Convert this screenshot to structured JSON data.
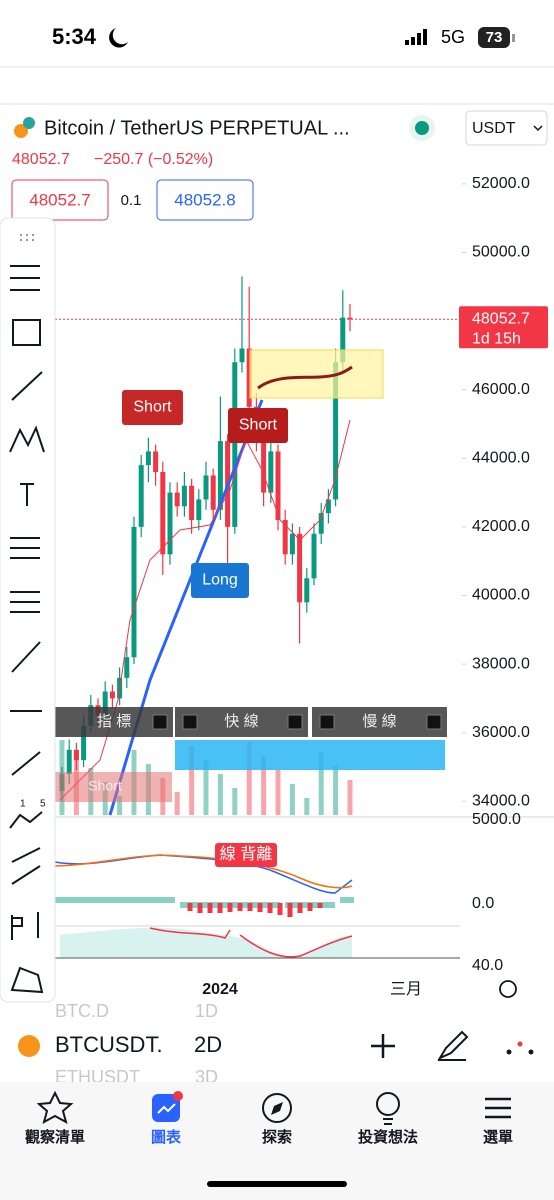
{
  "status": {
    "time": "5:34",
    "network": "5G",
    "battery": "73"
  },
  "header": {
    "symbol": "Bitcoin / TetherUS PERPETUAL ...",
    "currency": "USDT",
    "last": "48052.7",
    "change": "−250.7 (−0.52%)",
    "sell": "48052.7",
    "spread": "0.1",
    "buy": "48052.8"
  },
  "chart": {
    "ylim": [
      33600,
      54300
    ],
    "price_ticks": [
      {
        "value": 52000,
        "label": "52000.0"
      },
      {
        "value": 50000,
        "label": "50000.0"
      },
      {
        "value": 46000,
        "label": "46000.0"
      },
      {
        "value": 44000,
        "label": "44000.0"
      },
      {
        "value": 42000,
        "label": "42000.0"
      },
      {
        "value": 40000,
        "label": "40000.0"
      },
      {
        "value": 38000,
        "label": "38000.0"
      },
      {
        "value": 36000,
        "label": "36000.0"
      },
      {
        "value": 34000,
        "label": "34000.0"
      }
    ],
    "current_price": {
      "value": 48052.7,
      "label": "48052.7",
      "countdown": "1d 15h"
    },
    "up_color": "#089981",
    "down_color": "#f23645",
    "candles": [
      [
        34300,
        35000,
        34000,
        34800
      ],
      [
        34800,
        35800,
        34500,
        35500
      ],
      [
        35500,
        35700,
        34900,
        35200
      ],
      [
        35200,
        36500,
        35000,
        36200
      ],
      [
        36200,
        37100,
        36000,
        36800
      ],
      [
        36800,
        37000,
        36200,
        36500
      ],
      [
        36500,
        37500,
        36300,
        37200
      ],
      [
        37200,
        37400,
        36700,
        37000
      ],
      [
        37000,
        37900,
        36800,
        37600
      ],
      [
        37600,
        38500,
        37300,
        38200
      ],
      [
        38200,
        42300,
        38000,
        42000
      ],
      [
        42000,
        44100,
        41700,
        43800
      ],
      [
        43800,
        44600,
        43300,
        44200
      ],
      [
        44200,
        44400,
        43200,
        43600
      ],
      [
        43600,
        43900,
        40600,
        41200
      ],
      [
        41200,
        43300,
        40900,
        43000
      ],
      [
        43000,
        43300,
        42300,
        42600
      ],
      [
        42600,
        43600,
        42300,
        43200
      ],
      [
        43200,
        43400,
        41800,
        42200
      ],
      [
        42200,
        43100,
        41900,
        42800
      ],
      [
        42800,
        43900,
        42500,
        43500
      ],
      [
        43500,
        43700,
        42100,
        42500
      ],
      [
        42500,
        45800,
        42200,
        44500
      ],
      [
        44500,
        44700,
        40000,
        42000
      ],
      [
        42000,
        47200,
        41800,
        46800
      ],
      [
        46800,
        49300,
        46500,
        47200
      ],
      [
        47200,
        49000,
        45100,
        45500
      ],
      [
        45500,
        45900,
        44200,
        44600
      ],
      [
        44600,
        44900,
        42600,
        43000
      ],
      [
        43000,
        44500,
        42700,
        44200
      ],
      [
        44200,
        44400,
        41900,
        42200
      ],
      [
        42200,
        42500,
        40900,
        41200
      ],
      [
        41200,
        42100,
        40900,
        41800
      ],
      [
        41800,
        42000,
        38600,
        39800
      ],
      [
        39800,
        40800,
        39500,
        40500
      ],
      [
        40500,
        42100,
        40300,
        41800
      ],
      [
        41800,
        42700,
        41500,
        42400
      ],
      [
        42400,
        43100,
        42100,
        42800
      ],
      [
        42800,
        47200,
        42600,
        46800
      ],
      [
        46800,
        48900,
        46500,
        48100
      ],
      [
        48100,
        48500,
        47700,
        48052.7
      ]
    ],
    "annotations": [
      "Short",
      "Short",
      "Long"
    ],
    "indicator_labels": [
      "指 標",
      "快 線",
      "慢 線"
    ],
    "faded_label": "Short",
    "macd_ticks": [
      "5000.0",
      "0.0"
    ],
    "macd_note": "線 背離",
    "rsi_tick": "40.0",
    "x_labels": [
      "2024",
      "三月"
    ]
  },
  "toolbar": {
    "counts": [
      "1",
      "5"
    ]
  },
  "watchlist": [
    {
      "symbol": "BTC.D",
      "interval": "1D"
    },
    {
      "symbol": "BTCUSDT.",
      "interval": "2D"
    },
    {
      "symbol": "ETHUSDT",
      "interval": "3D"
    }
  ],
  "tabs": [
    "觀察清單",
    "圖表",
    "探索",
    "投資想法",
    "選單"
  ],
  "active_tab": 1
}
